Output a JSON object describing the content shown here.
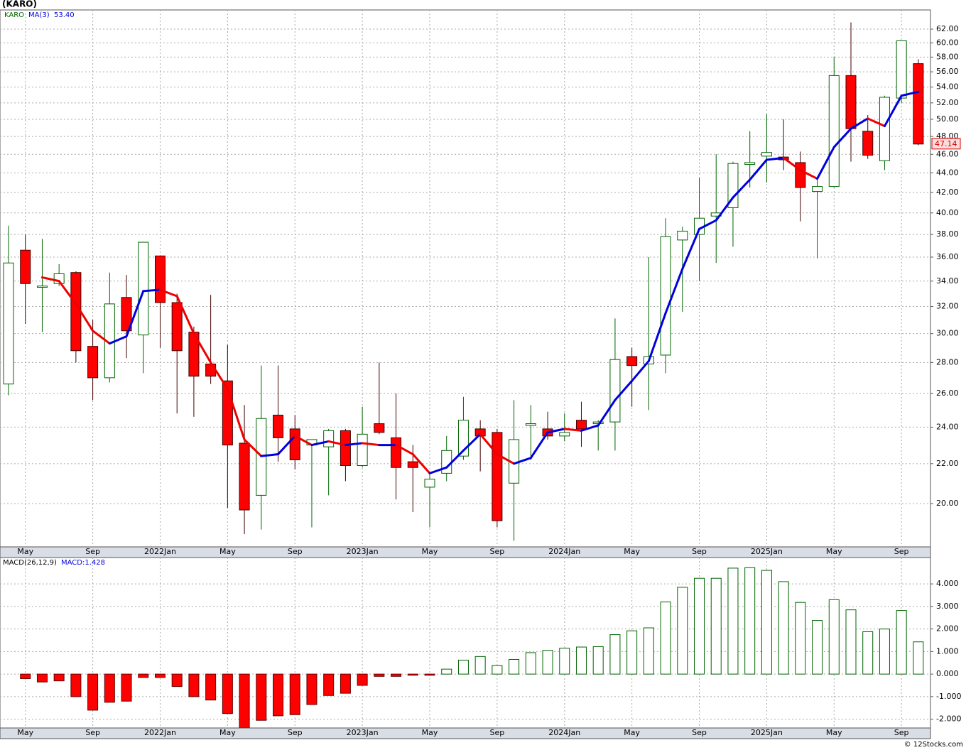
{
  "chart_data": [
    {
      "type": "candlestick",
      "title": "(KARO)",
      "symbol": "KARO",
      "categories": [
        null,
        "May",
        null,
        null,
        null,
        "Sep",
        null,
        null,
        null,
        "2022Jan",
        null,
        null,
        null,
        "May",
        null,
        null,
        null,
        "Sep",
        null,
        null,
        null,
        "2023Jan",
        null,
        null,
        null,
        "May",
        null,
        null,
        null,
        "Sep",
        null,
        null,
        null,
        "2024Jan",
        null,
        null,
        null,
        "May",
        null,
        null,
        null,
        "Sep",
        null,
        null,
        null,
        "2025Jan",
        null,
        null,
        null,
        "May",
        null,
        null,
        null,
        "Sep",
        null
      ],
      "open": [
        26.6,
        36.6,
        33.5,
        33.8,
        34.7,
        29.1,
        27.0,
        32.7,
        29.9,
        36.1,
        32.3,
        30.1,
        27.9,
        26.8,
        23.1,
        20.4,
        24.7,
        23.9,
        23.0,
        22.9,
        23.8,
        21.9,
        24.2,
        23.4,
        22.1,
        20.8,
        21.5,
        22.4,
        23.9,
        23.7,
        21.0,
        24.1,
        23.9,
        23.5,
        24.4,
        24.2,
        24.3,
        28.4,
        27.9,
        28.5,
        37.5,
        38.0,
        39.7,
        40.5,
        44.9,
        45.8,
        45.7,
        45.1,
        42.1,
        42.6,
        55.5,
        48.6,
        45.3,
        52.6,
        57.1
      ],
      "high": [
        38.8,
        38.0,
        37.6,
        35.4,
        34.8,
        31.0,
        34.7,
        34.5,
        37.3,
        36.1,
        33.0,
        30.5,
        32.9,
        29.2,
        25.3,
        27.8,
        27.8,
        24.7,
        23.3,
        23.9,
        23.9,
        25.2,
        28.0,
        26.0,
        23.0,
        21.6,
        23.5,
        25.8,
        24.4,
        23.9,
        25.6,
        25.3,
        24.9,
        24.8,
        25.5,
        24.4,
        31.1,
        29.0,
        36.0,
        39.5,
        38.7,
        43.5,
        46.0,
        45.2,
        48.6,
        50.6,
        50.0,
        46.3,
        43.6,
        58.0,
        63.0,
        50.5,
        52.9,
        60.3,
        57.7
      ],
      "low": [
        25.9,
        30.7,
        30.1,
        33.6,
        28.0,
        25.6,
        26.7,
        28.3,
        27.3,
        29.0,
        24.8,
        24.6,
        26.6,
        19.8,
        18.6,
        18.8,
        22.1,
        21.7,
        18.9,
        20.4,
        21.1,
        21.8,
        23.6,
        20.2,
        19.6,
        18.9,
        21.1,
        22.2,
        21.6,
        18.9,
        18.3,
        22.2,
        23.3,
        23.2,
        22.9,
        22.7,
        22.7,
        25.2,
        25.0,
        27.3,
        31.6,
        34.0,
        35.5,
        36.9,
        42.5,
        43.0,
        44.3,
        39.2,
        35.9,
        42.5,
        45.2,
        45.5,
        44.3,
        52.0,
        47.0
      ],
      "close": [
        35.5,
        33.8,
        33.6,
        34.6,
        28.8,
        27.0,
        32.2,
        30.2,
        37.3,
        32.3,
        28.8,
        27.1,
        27.1,
        23.0,
        19.7,
        24.5,
        23.4,
        22.2,
        23.3,
        23.8,
        21.9,
        23.6,
        23.7,
        21.8,
        21.8,
        21.2,
        22.7,
        24.4,
        23.5,
        19.2,
        23.3,
        24.2,
        23.5,
        23.7,
        23.9,
        24.3,
        28.2,
        27.8,
        28.4,
        37.8,
        38.3,
        39.5,
        40.0,
        45.0,
        45.1,
        46.2,
        45.4,
        42.5,
        42.6,
        55.5,
        48.9,
        45.9,
        52.7,
        60.3,
        47.14
      ],
      "up_color": "#006400",
      "down_color": "#ff0000",
      "ma": {
        "name": "MA(3)",
        "rise_color": "#0000dd",
        "fall_color": "#ee0000",
        "values": [
          null,
          null,
          34.3,
          34.0,
          32.2,
          30.2,
          29.3,
          29.8,
          33.2,
          33.3,
          32.8,
          30.0,
          28.0,
          26.3,
          23.3,
          22.4,
          22.5,
          23.5,
          23.0,
          23.2,
          23.0,
          23.1,
          23.0,
          23.0,
          22.5,
          21.5,
          21.8,
          22.7,
          23.6,
          22.5,
          22.0,
          22.3,
          23.7,
          23.9,
          23.8,
          24.1,
          25.6,
          26.8,
          28.1,
          31.5,
          35.0,
          38.5,
          39.3,
          41.5,
          43.3,
          45.4,
          45.6,
          44.3,
          43.4,
          46.8,
          48.9,
          50.1,
          49.2,
          52.9,
          53.4
        ],
        "legend_value": {
          "value": 53.4,
          "label": "53.40"
        }
      },
      "log_scale": true,
      "grid": true,
      "ylim": [
        18.04,
        64.9
      ],
      "yticks": [
        {
          "value": 20,
          "label": "20.00"
        },
        {
          "value": 22,
          "label": "22.00"
        },
        {
          "value": 24,
          "label": "24.00"
        },
        {
          "value": 26,
          "label": "26.00"
        },
        {
          "value": 28,
          "label": "28.00"
        },
        {
          "value": 30,
          "label": "30.00"
        },
        {
          "value": 32,
          "label": "32.00"
        },
        {
          "value": 34,
          "label": "34.00"
        },
        {
          "value": 36,
          "label": "36.00"
        },
        {
          "value": 38,
          "label": "38.00"
        },
        {
          "value": 40,
          "label": "40.00"
        },
        {
          "value": 42,
          "label": "42.00"
        },
        {
          "value": 44,
          "label": "44.00"
        },
        {
          "value": 46,
          "label": "46.00"
        },
        {
          "value": 48,
          "label": "48.00"
        },
        {
          "value": 50,
          "label": "50.00"
        },
        {
          "value": 52,
          "label": "52.00"
        },
        {
          "value": 54,
          "label": "54.00"
        },
        {
          "value": 56,
          "label": "56.00"
        },
        {
          "value": 58,
          "label": "58.00"
        },
        {
          "value": 60,
          "label": "60.00"
        },
        {
          "value": 62,
          "label": "62.00"
        }
      ]
    },
    {
      "type": "bar",
      "title": "MACD(26,12,9)",
      "legend": "MACD:1.428",
      "values": [
        null,
        -0.2,
        -0.35,
        -0.3,
        -1.0,
        -1.6,
        -1.25,
        -1.2,
        -0.15,
        -0.15,
        -0.55,
        -1.0,
        -1.15,
        -1.75,
        -2.4,
        -2.05,
        -1.85,
        -1.8,
        -1.35,
        -0.95,
        -0.85,
        -0.5,
        -0.1,
        -0.1,
        -0.05,
        -0.05,
        0.22,
        0.62,
        0.78,
        0.38,
        0.65,
        0.95,
        1.05,
        1.15,
        1.2,
        1.22,
        1.75,
        1.92,
        2.05,
        3.2,
        3.85,
        4.25,
        4.25,
        4.7,
        4.72,
        4.6,
        4.1,
        3.18,
        2.38,
        3.3,
        2.85,
        1.88,
        2.0,
        2.82,
        1.43
      ],
      "up_color": "#006400",
      "down_color": "#ff0000",
      "grid": true,
      "ylim": [
        -2.39,
        5.17
      ],
      "yticks": [
        {
          "value": -2,
          "label": "-2.000"
        },
        {
          "value": -1,
          "label": "-1.000"
        },
        {
          "value": 0,
          "label": "0.000"
        },
        {
          "value": 1,
          "label": "1.000"
        },
        {
          "value": 2,
          "label": "2.000"
        },
        {
          "value": 3,
          "label": "3.000"
        },
        {
          "value": 4,
          "label": "4.000"
        }
      ]
    },
    {
      "type": "footer",
      "text": "© 12Stocks.com"
    }
  ]
}
